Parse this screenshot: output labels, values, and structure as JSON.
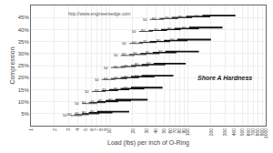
{
  "chart_data": {
    "type": "line",
    "log": "x",
    "grid": true,
    "color": "#111111",
    "xlabel": "Load (lbs) per inch of O-Ring",
    "ylabel": "Compression",
    "annotations": [
      "Shore A Hardness",
      "http://www.engineersedge.com"
    ],
    "xlim": [
      1,
      1000
    ],
    "xticks": [
      1,
      2,
      3,
      4,
      5,
      6,
      7,
      8,
      9,
      10,
      20,
      30,
      40,
      50,
      60,
      70,
      80,
      90,
      100,
      200,
      300,
      400,
      500,
      600,
      700,
      800,
      900,
      1000
    ],
    "ylim": [
      0,
      50
    ],
    "yticks": [
      {
        "value": 5,
        "label": "5%"
      },
      {
        "value": 10,
        "label": "10%"
      },
      {
        "value": 15,
        "label": "15%"
      },
      {
        "value": 20,
        "label": "20%"
      },
      {
        "value": 25,
        "label": "25%"
      },
      {
        "value": 30,
        "label": "30%"
      },
      {
        "value": 35,
        "label": "35%"
      },
      {
        "value": 40,
        "label": "40%"
      },
      {
        "value": 45,
        "label": "45%"
      }
    ],
    "series": [
      {
        "hardness": 50,
        "x": [
          3.2,
          4.5
        ],
        "values": [
          4.2,
          4.2
        ]
      },
      {
        "hardness": 60,
        "x": [
          3.6,
          5.5
        ],
        "values": [
          4.6,
          4.6
        ]
      },
      {
        "hardness": 70,
        "x": [
          4.5,
          7.5
        ],
        "values": [
          5,
          5
        ]
      },
      {
        "hardness": 80,
        "x": [
          5.5,
          11.0
        ],
        "values": [
          5.4,
          5.4
        ]
      },
      {
        "hardness": 90,
        "x": [
          7.0,
          18.0
        ],
        "values": [
          5.8,
          5.8
        ]
      },
      {
        "hardness": 50,
        "x": [
          4.5,
          7.0
        ],
        "values": [
          9.2,
          9.2
        ]
      },
      {
        "hardness": 60,
        "x": [
          5.5,
          9.0
        ],
        "values": [
          9.6,
          9.6
        ]
      },
      {
        "hardness": 70,
        "x": [
          7.0,
          13.0
        ],
        "values": [
          10,
          10
        ]
      },
      {
        "hardness": 80,
        "x": [
          9.0,
          19.0
        ],
        "values": [
          10.4,
          10.4
        ]
      },
      {
        "hardness": 90,
        "x": [
          12.0,
          31.0
        ],
        "values": [
          10.8,
          10.8
        ]
      },
      {
        "hardness": 50,
        "x": [
          6.0,
          9.0
        ],
        "values": [
          14.2,
          14.2
        ]
      },
      {
        "hardness": 60,
        "x": [
          8.0,
          13.0
        ],
        "values": [
          14.6,
          14.6
        ]
      },
      {
        "hardness": 70,
        "x": [
          10.0,
          18.0
        ],
        "values": [
          15,
          15
        ]
      },
      {
        "hardness": 80,
        "x": [
          14.0,
          28.0
        ],
        "values": [
          15.4,
          15.4
        ]
      },
      {
        "hardness": 90,
        "x": [
          19.0,
          48.0
        ],
        "values": [
          15.8,
          15.8
        ]
      },
      {
        "hardness": 50,
        "x": [
          8.0,
          12.0
        ],
        "values": [
          19.2,
          19.2
        ]
      },
      {
        "hardness": 60,
        "x": [
          10.5,
          17.0
        ],
        "values": [
          19.6,
          19.6
        ]
      },
      {
        "hardness": 70,
        "x": [
          14.0,
          24.0
        ],
        "values": [
          20,
          20
        ]
      },
      {
        "hardness": 80,
        "x": [
          19.0,
          38.0
        ],
        "values": [
          20.4,
          20.4
        ]
      },
      {
        "hardness": 90,
        "x": [
          26.0,
          66.0
        ],
        "values": [
          20.8,
          20.8
        ]
      },
      {
        "hardness": 50,
        "x": [
          10.5,
          16.0
        ],
        "values": [
          24.2,
          24.2
        ]
      },
      {
        "hardness": 60,
        "x": [
          14.0,
          22.0
        ],
        "values": [
          24.6,
          24.6
        ]
      },
      {
        "hardness": 70,
        "x": [
          19.0,
          32.0
        ],
        "values": [
          25,
          25
        ]
      },
      {
        "hardness": 80,
        "x": [
          26.0,
          52.0
        ],
        "values": [
          25.4,
          25.4
        ]
      },
      {
        "hardness": 90,
        "x": [
          37.0,
          95.0
        ],
        "values": [
          25.8,
          25.8
        ]
      },
      {
        "hardness": 50,
        "x": [
          14.0,
          21.0
        ],
        "values": [
          29.2,
          29.2
        ]
      },
      {
        "hardness": 60,
        "x": [
          18.0,
          30.0
        ],
        "values": [
          29.6,
          29.6
        ]
      },
      {
        "hardness": 70,
        "x": [
          25.0,
          44.0
        ],
        "values": [
          30,
          30
        ]
      },
      {
        "hardness": 80,
        "x": [
          36.0,
          72.0
        ],
        "values": [
          30.4,
          30.4
        ]
      },
      {
        "hardness": 90,
        "x": [
          52.0,
          140.0
        ],
        "values": [
          30.8,
          30.8
        ]
      },
      {
        "hardness": 50,
        "x": [
          18.0,
          27.0
        ],
        "values": [
          34.2,
          34.2
        ]
      },
      {
        "hardness": 60,
        "x": [
          24.0,
          40.0
        ],
        "values": [
          34.6,
          34.6
        ]
      },
      {
        "hardness": 70,
        "x": [
          33.0,
          60.0
        ],
        "values": [
          35,
          35
        ]
      },
      {
        "hardness": 80,
        "x": [
          50.0,
          100.0
        ],
        "values": [
          35.4,
          35.4
        ]
      },
      {
        "hardness": 90,
        "x": [
          74.0,
          200.0
        ],
        "values": [
          35.8,
          35.8
        ]
      },
      {
        "hardness": 50,
        "x": [
          24.0,
          36.0
        ],
        "values": [
          39.2,
          39.2
        ]
      },
      {
        "hardness": 60,
        "x": [
          32.0,
          55.0
        ],
        "values": [
          39.6,
          39.6
        ]
      },
      {
        "hardness": 70,
        "x": [
          46.0,
          82.0
        ],
        "values": [
          40,
          40
        ]
      },
      {
        "hardness": 80,
        "x": [
          68.0,
          140.0
        ],
        "values": [
          40.4,
          40.4
        ]
      },
      {
        "hardness": 90,
        "x": [
          105.0,
          280.0
        ],
        "values": [
          40.8,
          40.8
        ]
      },
      {
        "hardness": 50,
        "x": [
          33.0,
          50.0
        ],
        "values": [
          44.2,
          44.2
        ]
      },
      {
        "hardness": 60,
        "x": [
          44.0,
          76.0
        ],
        "values": [
          44.6,
          44.6
        ]
      },
      {
        "hardness": 70,
        "x": [
          63.0,
          115.0
        ],
        "values": [
          45,
          45
        ]
      },
      {
        "hardness": 80,
        "x": [
          96.0,
          195.0
        ],
        "values": [
          45.4,
          45.4
        ]
      },
      {
        "hardness": 90,
        "x": [
          155.0,
          410.0
        ],
        "values": [
          45.8,
          45.8
        ]
      }
    ]
  }
}
